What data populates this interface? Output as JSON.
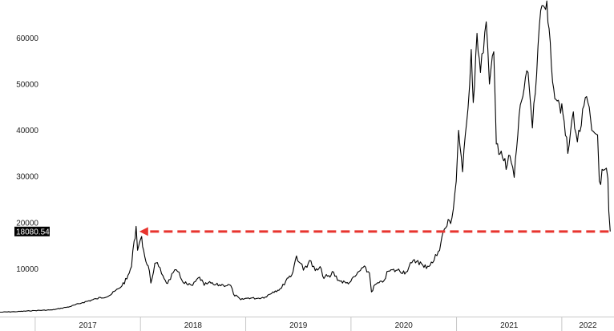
{
  "chart_data": {
    "type": "line",
    "title": "",
    "xlabel": "",
    "ylabel": "",
    "ylim": [
      0,
      67000
    ],
    "xlim": [
      "2016-09-01",
      "2022-07-01"
    ],
    "y_ticks": [
      10000,
      20000,
      30000,
      40000,
      50000,
      60000
    ],
    "y_tick_labels": [
      "10000",
      "20000",
      "30000",
      "40000",
      "50000",
      "60000"
    ],
    "x_labels": [
      "2017",
      "2018",
      "2019",
      "2020",
      "2021",
      "2022"
    ],
    "grid": false,
    "legend": "none",
    "series": [
      {
        "color": "#000000",
        "points": [
          [
            "2016-09-01",
            600
          ],
          [
            "2016-11-01",
            730
          ],
          [
            "2017-01-01",
            960
          ],
          [
            "2017-03-01",
            1100
          ],
          [
            "2017-05-01",
            1800
          ],
          [
            "2017-06-15",
            2700
          ],
          [
            "2017-08-01",
            3500
          ],
          [
            "2017-09-15",
            4200
          ],
          [
            "2017-10-20",
            5800
          ],
          [
            "2017-11-15",
            7800
          ],
          [
            "2017-12-01",
            10500
          ],
          [
            "2017-12-10",
            16000
          ],
          [
            "2017-12-17",
            19200
          ],
          [
            "2017-12-22",
            14000
          ],
          [
            "2017-12-28",
            15500
          ],
          [
            "2018-01-05",
            17000
          ],
          [
            "2018-01-12",
            14000
          ],
          [
            "2018-01-20",
            11500
          ],
          [
            "2018-02-01",
            9500
          ],
          [
            "2018-02-06",
            6900
          ],
          [
            "2018-02-20",
            11200
          ],
          [
            "2018-03-05",
            10500
          ],
          [
            "2018-03-20",
            8500
          ],
          [
            "2018-04-05",
            6800
          ],
          [
            "2018-04-25",
            9200
          ],
          [
            "2018-05-10",
            9400
          ],
          [
            "2018-05-25",
            7500
          ],
          [
            "2018-06-15",
            6500
          ],
          [
            "2018-07-01",
            6400
          ],
          [
            "2018-07-25",
            8200
          ],
          [
            "2018-08-10",
            6400
          ],
          [
            "2018-08-25",
            7000
          ],
          [
            "2018-09-15",
            6500
          ],
          [
            "2018-10-15",
            6500
          ],
          [
            "2018-11-10",
            6400
          ],
          [
            "2018-11-20",
            4500
          ],
          [
            "2018-12-15",
            3300
          ],
          [
            "2019-01-10",
            3700
          ],
          [
            "2019-02-10",
            3600
          ],
          [
            "2019-03-10",
            3900
          ],
          [
            "2019-04-05",
            5000
          ],
          [
            "2019-05-05",
            5800
          ],
          [
            "2019-05-25",
            8000
          ],
          [
            "2019-06-10",
            8700
          ],
          [
            "2019-06-26",
            12800
          ],
          [
            "2019-07-10",
            11200
          ],
          [
            "2019-07-20",
            9700
          ],
          [
            "2019-08-10",
            11800
          ],
          [
            "2019-08-30",
            9600
          ],
          [
            "2019-09-20",
            10000
          ],
          [
            "2019-09-25",
            8400
          ],
          [
            "2019-10-20",
            8200
          ],
          [
            "2019-10-28",
            9400
          ],
          [
            "2019-11-20",
            7500
          ],
          [
            "2019-12-15",
            6900
          ],
          [
            "2019-12-31",
            7200
          ],
          [
            "2020-01-20",
            8700
          ],
          [
            "2020-02-12",
            10300
          ],
          [
            "2020-03-05",
            9100
          ],
          [
            "2020-03-12",
            5000
          ],
          [
            "2020-03-25",
            6600
          ],
          [
            "2020-04-20",
            7100
          ],
          [
            "2020-05-10",
            9500
          ],
          [
            "2020-06-10",
            9700
          ],
          [
            "2020-07-10",
            9300
          ],
          [
            "2020-07-30",
            11300
          ],
          [
            "2020-08-20",
            11800
          ],
          [
            "2020-09-10",
            10300
          ],
          [
            "2020-10-10",
            11300
          ],
          [
            "2020-10-30",
            13800
          ],
          [
            "2020-11-20",
            18600
          ],
          [
            "2020-12-16",
            21000
          ],
          [
            "2020-12-31",
            29000
          ],
          [
            "2021-01-08",
            40000
          ],
          [
            "2021-01-22",
            31000
          ],
          [
            "2021-02-10",
            44800
          ],
          [
            "2021-02-21",
            57500
          ],
          [
            "2021-02-28",
            46000
          ],
          [
            "2021-03-13",
            61000
          ],
          [
            "2021-03-25",
            52500
          ],
          [
            "2021-04-14",
            63500
          ],
          [
            "2021-04-25",
            50000
          ],
          [
            "2021-05-10",
            57000
          ],
          [
            "2021-05-19",
            37000
          ],
          [
            "2021-06-05",
            35500
          ],
          [
            "2021-06-22",
            31500
          ],
          [
            "2021-07-05",
            34500
          ],
          [
            "2021-07-20",
            29800
          ],
          [
            "2021-08-10",
            45500
          ],
          [
            "2021-09-06",
            52500
          ],
          [
            "2021-09-21",
            40500
          ],
          [
            "2021-10-01",
            48000
          ],
          [
            "2021-10-20",
            66000
          ],
          [
            "2021-11-10",
            68000
          ],
          [
            "2021-11-26",
            54000
          ],
          [
            "2021-12-04",
            49000
          ],
          [
            "2021-12-20",
            46500
          ],
          [
            "2022-01-05",
            43500
          ],
          [
            "2022-01-22",
            35000
          ],
          [
            "2022-02-10",
            44000
          ],
          [
            "2022-02-24",
            37500
          ],
          [
            "2022-03-28",
            47300
          ],
          [
            "2022-04-15",
            40000
          ],
          [
            "2022-05-05",
            39000
          ],
          [
            "2022-05-11",
            29000
          ],
          [
            "2022-05-30",
            31500
          ],
          [
            "2022-06-10",
            29500
          ],
          [
            "2022-06-13",
            22500
          ],
          [
            "2022-06-18",
            18080
          ]
        ]
      }
    ],
    "annotations": [
      {
        "type": "horizontal_arrow",
        "color": "#e8342e",
        "from": [
          "2022-06-18",
          18080.54
        ],
        "to": [
          "2017-12-17",
          18080.54
        ]
      }
    ],
    "last_value_label": "18080.54"
  }
}
